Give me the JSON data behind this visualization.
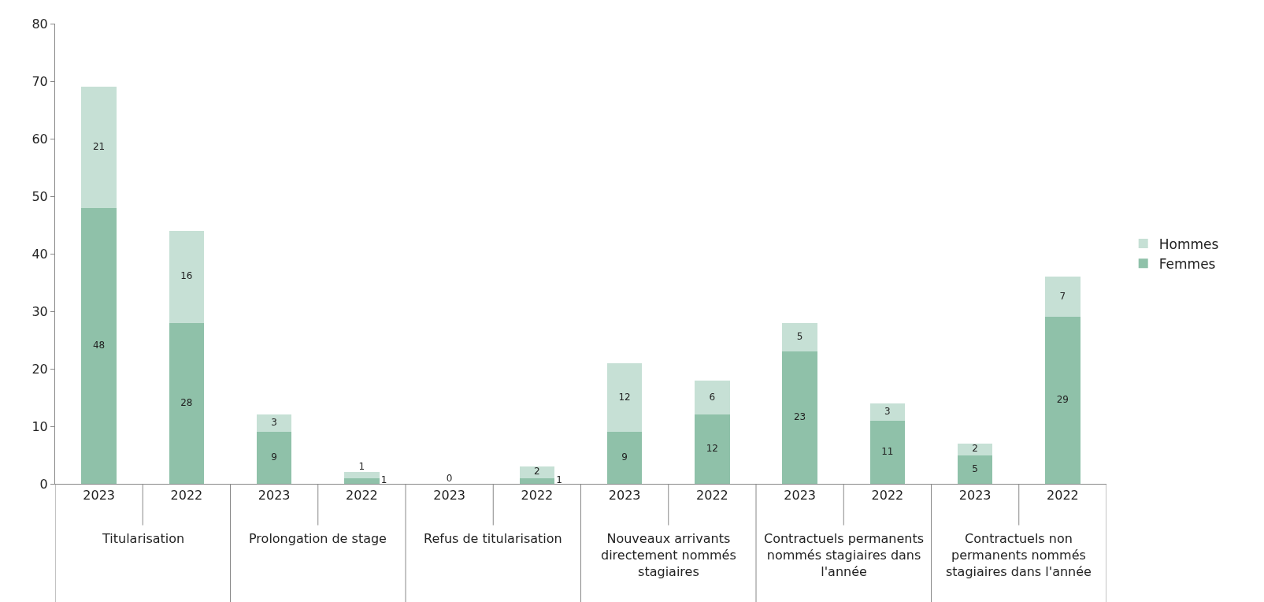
{
  "chart_data": {
    "type": "bar",
    "stacked": true,
    "categories": [
      "2023",
      "2022",
      "2023",
      "2022",
      "2023",
      "2022",
      "2023",
      "2022",
      "2023",
      "2022",
      "2023",
      "2022"
    ],
    "series": [
      {
        "name": "Femmes",
        "color": "#8fc1a9",
        "values": [
          48,
          28,
          9,
          1,
          0,
          1,
          9,
          12,
          23,
          11,
          5,
          29
        ],
        "value_labels": [
          "48",
          "28",
          "9",
          "1",
          "0",
          "1",
          "9",
          "12",
          "23",
          "11",
          "5",
          "29"
        ]
      },
      {
        "name": "Hommes",
        "color": "#c6e0d5",
        "values": [
          21,
          16,
          3,
          1,
          0,
          2,
          12,
          6,
          5,
          3,
          2,
          7
        ],
        "value_labels": [
          "21",
          "16",
          "3",
          "1",
          null,
          "2",
          "12",
          "6",
          "5",
          "3",
          "2",
          "7"
        ]
      }
    ],
    "annotations": [
      "Titularisation",
      "Prolongation de stage",
      "Refus de titularisation",
      "Nouveaux arrivants directement nommés stagiaires",
      "Contractuels permanents nommés stagiaires dans l'année",
      "Contractuels non permanents nommés stagiaires dans l'année"
    ],
    "ylim": [
      0,
      80
    ],
    "yticks": [
      0,
      10,
      20,
      30,
      40,
      50,
      60,
      70,
      80
    ],
    "grid": false,
    "legend": "right"
  }
}
